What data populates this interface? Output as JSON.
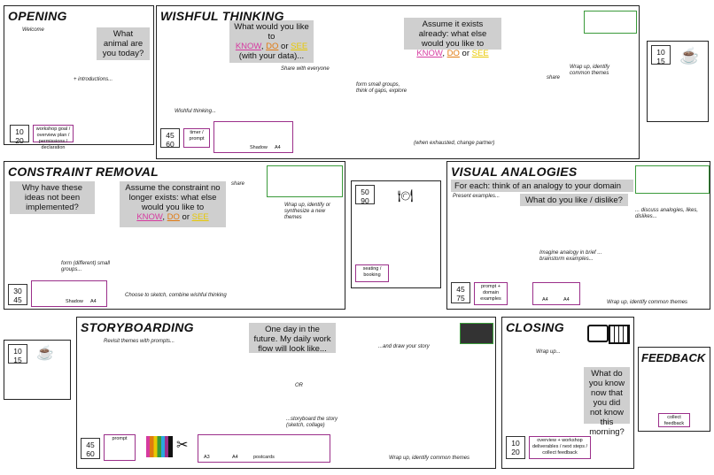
{
  "colors": {
    "pink": "#d63aa0",
    "orange": "#e07a10",
    "yellow": "#e8c800",
    "purple": "#9b2f8a",
    "blue": "#2aa7df",
    "green": "#3a9a3a"
  },
  "opening": {
    "title": "OPENING",
    "welcome": "Welcome",
    "question": "What animal are you today?",
    "note": "+ introductions...",
    "time": [
      "10",
      "20"
    ],
    "materials": "workshop goal / overview plan / permissions / declaration"
  },
  "wishful": {
    "title": "WISHFUL THINKING",
    "q1_pre": "What would you like to",
    "q1_know": "KNOW",
    "q1_comma": ", ",
    "q1_do": "DO",
    "q1_or": " or ",
    "q1_see": "SEE",
    "q1_post": "(with your data)...",
    "q2_pre": "Assume it exists already: what else would you like to",
    "note_wish": "Wishful thinking...",
    "note_share": "Share with everyone",
    "note_groups": "form small groups, think of gaps, explore",
    "note_cards": "(when exhausted, change partner)",
    "note_wrap": "Wrap up, identify common themes",
    "note_share2": "share",
    "time": [
      "45",
      "60"
    ],
    "materials": "timer / prompt",
    "mat_labels": [
      "Shadow",
      "A4"
    ]
  },
  "coffee1": {
    "time": [
      "10",
      "15"
    ]
  },
  "constraint": {
    "title": "CONSTRAINT REMOVAL",
    "q1": "Why have these ideas not been implemented?",
    "q2_pre": "Assume the constraint no longer exists: what else would you like to",
    "note_groups": "form (different) small groups...",
    "note_wish": "Choose to sketch, combine wishful thinking",
    "note_share": "share",
    "note_wrap": "Wrap up, identify or synthesize a new themes",
    "time": [
      "30",
      "45"
    ],
    "mat_labels": [
      "Shadow",
      "A4"
    ]
  },
  "lunch": {
    "time": [
      "50",
      "90"
    ],
    "materials": "seating / booking"
  },
  "visual": {
    "title": "VISUAL ANALOGIES",
    "instruction": "For each: think of an analogy to your domain",
    "examples": "Present examples...",
    "question": "What do you like / dislike?",
    "note_share": "... discuss analogies, likes, dislikes...",
    "note_brief": "Imagine analogy in brief ... brainstorm examples...",
    "note_wrap": "Wrap up, identify common themes",
    "time": [
      "45",
      "75"
    ],
    "materials": "prompt + domain examples",
    "mat_labels": [
      "A4",
      "A4"
    ]
  },
  "coffee2": {
    "time": [
      "10",
      "15"
    ]
  },
  "storyboard": {
    "title": "STORYBOARDING",
    "intro": "Revisit themes with prompts...",
    "question": "One day in the future. My daily work flow will look like...",
    "or": "OR",
    "note_story": "...and draw your story",
    "note_scenario": "...storyboard the story (sketch, collage)",
    "note_wrap": "Wrap up, identify common themes",
    "time": [
      "45",
      "60"
    ],
    "materials": "prompt",
    "mat_labels": [
      "A3",
      "A4",
      "postcards"
    ]
  },
  "closing": {
    "title": "CLOSING",
    "wrap": "Wrap up...",
    "question": "What do you know now that you did not know this morning?",
    "time": [
      "10",
      "20"
    ],
    "materials": "overview + workshop deliverables / next steps / collect feedback"
  },
  "feedback": {
    "title": "FEEDBACK",
    "materials": "collect feedback"
  }
}
